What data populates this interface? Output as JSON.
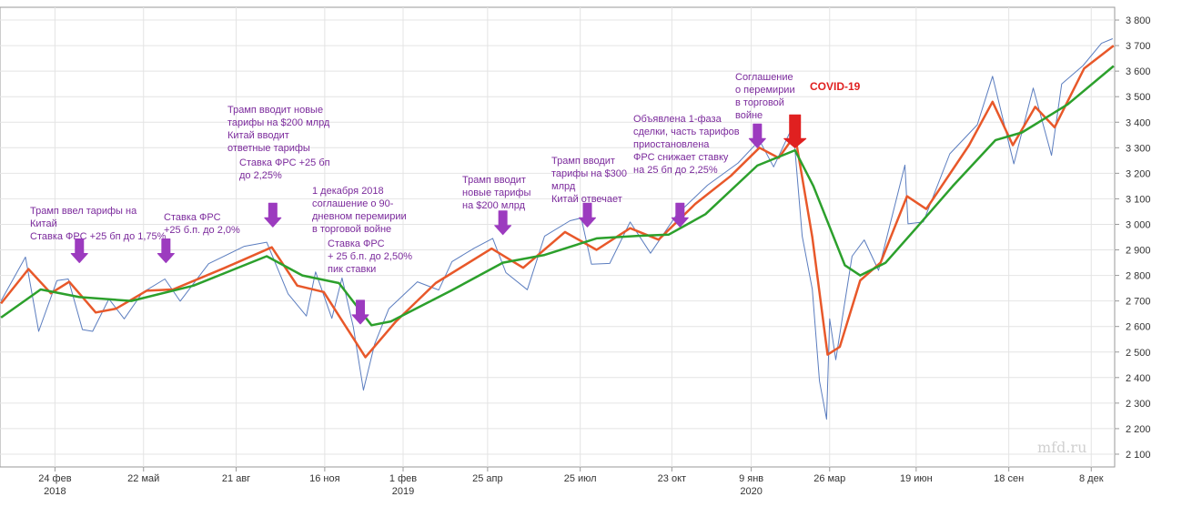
{
  "chart_data": {
    "type": "line",
    "y_axis": {
      "ticks": [
        2100,
        2200,
        2300,
        2400,
        2500,
        2600,
        2700,
        2800,
        2900,
        3000,
        3100,
        3200,
        3300,
        3400,
        3500,
        3600,
        3700,
        3800
      ],
      "tick_labels": [
        "2 100",
        "2 200",
        "2 300",
        "2 400",
        "2 500",
        "2 600",
        "2 700",
        "2 800",
        "2 900",
        "3 000",
        "3 100",
        "3 200",
        "3 300",
        "3 400",
        "3 500",
        "3 600",
        "3 700",
        "3 800"
      ],
      "range": [
        2050,
        3850
      ]
    },
    "x_axis": {
      "range": [
        "2018-01-01",
        "2020-12-31"
      ],
      "ticks": [
        {
          "date": "2018-02-24",
          "label": "24 фев",
          "sub": "2018"
        },
        {
          "date": "2018-05-22",
          "label": "22 май",
          "sub": ""
        },
        {
          "date": "2018-08-21",
          "label": "21 авг",
          "sub": ""
        },
        {
          "date": "2018-11-16",
          "label": "16 ноя",
          "sub": ""
        },
        {
          "date": "2019-02-01",
          "label": "1 фев",
          "sub": "2019"
        },
        {
          "date": "2019-04-25",
          "label": "25 апр",
          "sub": ""
        },
        {
          "date": "2019-07-25",
          "label": "25 июл",
          "sub": ""
        },
        {
          "date": "2019-10-23",
          "label": "23 окт",
          "sub": ""
        },
        {
          "date": "2020-01-09",
          "label": "9 янв",
          "sub": "2020"
        },
        {
          "date": "2020-03-26",
          "label": "26 мар",
          "sub": ""
        },
        {
          "date": "2020-06-19",
          "label": "19 июн",
          "sub": ""
        },
        {
          "date": "2020-09-18",
          "label": "18 сен",
          "sub": ""
        },
        {
          "date": "2020-12-08",
          "label": "8 дек",
          "sub": ""
        }
      ]
    },
    "grid": true,
    "series": [
      {
        "color": "#5b7dbf",
        "points": [
          [
            "2018-01-02",
            2700
          ],
          [
            "2018-01-26",
            2872
          ],
          [
            "2018-02-08",
            2581
          ],
          [
            "2018-02-26",
            2780
          ],
          [
            "2018-03-09",
            2786
          ],
          [
            "2018-03-23",
            2588
          ],
          [
            "2018-04-02",
            2581
          ],
          [
            "2018-04-18",
            2708
          ],
          [
            "2018-05-03",
            2630
          ],
          [
            "2018-05-21",
            2733
          ],
          [
            "2018-06-12",
            2786
          ],
          [
            "2018-06-27",
            2699
          ],
          [
            "2018-07-25",
            2846
          ],
          [
            "2018-08-29",
            2914
          ],
          [
            "2018-09-20",
            2930
          ],
          [
            "2018-10-11",
            2728
          ],
          [
            "2018-10-29",
            2641
          ],
          [
            "2018-11-07",
            2814
          ],
          [
            "2018-11-23",
            2632
          ],
          [
            "2018-12-03",
            2790
          ],
          [
            "2018-12-14",
            2600
          ],
          [
            "2018-12-24",
            2351
          ],
          [
            "2019-01-04",
            2531
          ],
          [
            "2019-01-18",
            2670
          ],
          [
            "2019-02-15",
            2775
          ],
          [
            "2019-03-08",
            2743
          ],
          [
            "2019-03-21",
            2854
          ],
          [
            "2019-04-12",
            2907
          ],
          [
            "2019-04-30",
            2945
          ],
          [
            "2019-05-13",
            2811
          ],
          [
            "2019-06-03",
            2744
          ],
          [
            "2019-06-20",
            2954
          ],
          [
            "2019-07-15",
            3014
          ],
          [
            "2019-07-26",
            3025
          ],
          [
            "2019-08-05",
            2844
          ],
          [
            "2019-08-23",
            2847
          ],
          [
            "2019-09-12",
            3009
          ],
          [
            "2019-10-02",
            2887
          ],
          [
            "2019-10-28",
            3039
          ],
          [
            "2019-11-27",
            3153
          ],
          [
            "2019-12-27",
            3240
          ],
          [
            "2020-01-17",
            3329
          ],
          [
            "2020-01-31",
            3225
          ],
          [
            "2020-02-19",
            3386
          ],
          [
            "2020-02-28",
            2954
          ],
          [
            "2020-03-09",
            2746
          ],
          [
            "2020-03-16",
            2386
          ],
          [
            "2020-03-23",
            2237
          ],
          [
            "2020-03-26",
            2630
          ],
          [
            "2020-04-01",
            2470
          ],
          [
            "2020-04-17",
            2875
          ],
          [
            "2020-04-29",
            2939
          ],
          [
            "2020-05-13",
            2820
          ],
          [
            "2020-06-08",
            3232
          ],
          [
            "2020-06-11",
            3002
          ],
          [
            "2020-06-26",
            3009
          ],
          [
            "2020-07-22",
            3276
          ],
          [
            "2020-08-18",
            3390
          ],
          [
            "2020-09-02",
            3580
          ],
          [
            "2020-09-23",
            3237
          ],
          [
            "2020-10-12",
            3534
          ],
          [
            "2020-10-30",
            3270
          ],
          [
            "2020-11-09",
            3550
          ],
          [
            "2020-11-30",
            3622
          ],
          [
            "2020-12-18",
            3709
          ],
          [
            "2020-12-29",
            3727
          ]
        ]
      },
      {
        "color": "#e8582a",
        "points": [
          [
            "2018-01-02",
            2690
          ],
          [
            "2018-01-29",
            2825
          ],
          [
            "2018-02-20",
            2730
          ],
          [
            "2018-03-10",
            2775
          ],
          [
            "2018-04-05",
            2655
          ],
          [
            "2018-04-25",
            2670
          ],
          [
            "2018-05-25",
            2740
          ],
          [
            "2018-06-20",
            2745
          ],
          [
            "2018-08-10",
            2830
          ],
          [
            "2018-09-25",
            2910
          ],
          [
            "2018-10-20",
            2760
          ],
          [
            "2018-11-15",
            2735
          ],
          [
            "2018-12-26",
            2480
          ],
          [
            "2019-01-25",
            2620
          ],
          [
            "2019-03-05",
            2770
          ],
          [
            "2019-04-29",
            2905
          ],
          [
            "2019-05-30",
            2830
          ],
          [
            "2019-07-10",
            2970
          ],
          [
            "2019-08-10",
            2900
          ],
          [
            "2019-09-12",
            2985
          ],
          [
            "2019-10-10",
            2940
          ],
          [
            "2019-11-15",
            3080
          ],
          [
            "2019-12-20",
            3190
          ],
          [
            "2020-01-17",
            3300
          ],
          [
            "2020-02-05",
            3260
          ],
          [
            "2020-02-21",
            3350
          ],
          [
            "2020-03-09",
            2950
          ],
          [
            "2020-03-24",
            2490
          ],
          [
            "2020-04-05",
            2520
          ],
          [
            "2020-04-25",
            2780
          ],
          [
            "2020-05-15",
            2850
          ],
          [
            "2020-06-10",
            3110
          ],
          [
            "2020-06-29",
            3060
          ],
          [
            "2020-08-10",
            3310
          ],
          [
            "2020-09-02",
            3480
          ],
          [
            "2020-09-22",
            3310
          ],
          [
            "2020-10-14",
            3460
          ],
          [
            "2020-11-02",
            3380
          ],
          [
            "2020-12-01",
            3610
          ],
          [
            "2020-12-30",
            3700
          ]
        ]
      },
      {
        "color": "#2ca02c",
        "points": [
          [
            "2018-01-02",
            2635
          ],
          [
            "2018-02-10",
            2745
          ],
          [
            "2018-03-20",
            2715
          ],
          [
            "2018-05-10",
            2700
          ],
          [
            "2018-07-10",
            2760
          ],
          [
            "2018-09-20",
            2875
          ],
          [
            "2018-10-25",
            2800
          ],
          [
            "2018-11-30",
            2770
          ],
          [
            "2019-01-01",
            2605
          ],
          [
            "2019-01-20",
            2620
          ],
          [
            "2019-03-20",
            2740
          ],
          [
            "2019-05-10",
            2850
          ],
          [
            "2019-06-20",
            2880
          ],
          [
            "2019-08-10",
            2945
          ],
          [
            "2019-09-20",
            2955
          ],
          [
            "2019-10-20",
            2960
          ],
          [
            "2019-11-25",
            3040
          ],
          [
            "2020-01-15",
            3230
          ],
          [
            "2020-02-21",
            3290
          ],
          [
            "2020-03-10",
            3150
          ],
          [
            "2020-04-10",
            2840
          ],
          [
            "2020-04-25",
            2800
          ],
          [
            "2020-05-20",
            2850
          ],
          [
            "2020-06-20",
            2990
          ],
          [
            "2020-07-25",
            3150
          ],
          [
            "2020-09-05",
            3330
          ],
          [
            "2020-10-01",
            3360
          ],
          [
            "2020-11-15",
            3470
          ],
          [
            "2020-12-30",
            3620
          ]
        ]
      }
    ],
    "annotations": [
      {
        "lines": [
          "Трамп ввел тарифы на",
          "Китай",
          "Ставка ФРС +25 бп до 1,75%"
        ],
        "date": "2018-03-20",
        "arrow_value": 2850
      },
      {
        "lines": [
          "Ставка ФРС",
          "+25 б.п. до 2,0%"
        ],
        "date": "2018-06-13",
        "arrow_value": 2850
      },
      {
        "lines": [
          "Трамп вводит новые",
          "тарифы на $200 млрд",
          "Китай вводит",
          "ответные тарифы"
        ],
        "date": "2018-09-26",
        "arrow_value": 2990
      },
      {
        "lines": [
          "Ставка ФРС +25 бп",
          "до 2,25%"
        ],
        "date": null
      },
      {
        "lines": [
          "1 декабря 2018",
          "соглашение о 90-",
          "дневном перемирии",
          "в торговой войне"
        ],
        "date": "2018-12-21",
        "arrow_value": 2610
      },
      {
        "lines": [
          "Ставка ФРС",
          "+ 25 б.п. до 2,50%",
          "пик ставки"
        ],
        "date": null
      },
      {
        "lines": [
          "Трамп вводит",
          "новые тарифы",
          "на $200 млрд"
        ],
        "date": "2019-05-10",
        "arrow_value": 2960
      },
      {
        "lines": [
          "Трамп вводит",
          "тарифы на $300",
          "млрд",
          "Китай отвечает"
        ],
        "date": "2019-08-01",
        "arrow_value": 2990
      },
      {
        "lines": [
          "Объявлена 1-фаза",
          "сделки, часть тарифов",
          "приостановлена",
          "ФРС снижает ставку",
          "на 25 бп до 2,25%"
        ],
        "date": "2019-10-31",
        "arrow_value": 2990
      },
      {
        "lines": [
          "Соглашение",
          "о перемирии",
          "в торговой",
          "войне"
        ],
        "date": "2020-01-15",
        "arrow_value": 3300
      },
      {
        "lines": [
          "COVID-19"
        ],
        "date": "2020-02-21",
        "arrow_value": 3300,
        "color": "#e02020"
      }
    ]
  },
  "watermark": "mfd.ru",
  "colors": {
    "annotation": "#9c3bbf",
    "covid": "#e02020",
    "grid": "#e4e4e4",
    "axis": "#999999"
  }
}
